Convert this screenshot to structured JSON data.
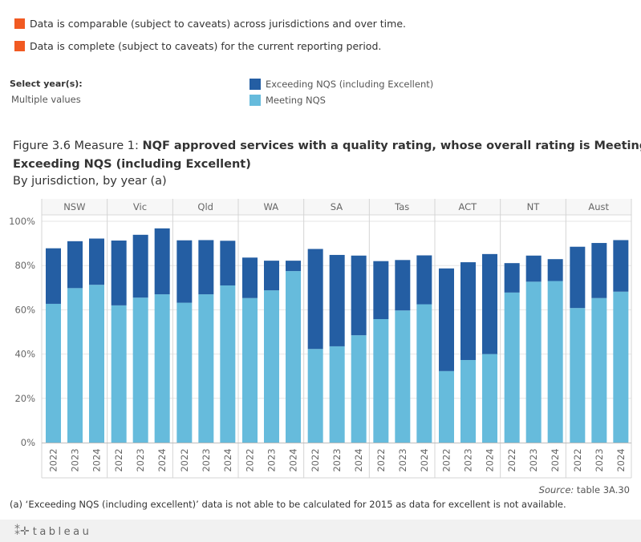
{
  "caveats": [
    {
      "text": "Data is comparable (subject to caveats) across jurisdictions and over time.",
      "color": "#f15a22"
    },
    {
      "text": "Data is complete (subject to caveats) for the current reporting period.",
      "color": "#f15a22"
    }
  ],
  "filter": {
    "label": "Select year(s):",
    "value": "Multiple values"
  },
  "figure": {
    "title_prefix": "Figure 3.6 Measure 1: ",
    "title_bold_1": "NQF approved services with a quality rating, whose overall rating is Meeting or",
    "title_bold_2": "Exceeding NQS (including Excellent)",
    "subtitle": "By jurisdiction, by year (a)"
  },
  "source": {
    "label": "Source:",
    "text": " table 3A.30"
  },
  "footnote": "(a) ‘Exceeding NQS (including excellent)’ data is not able to be calculated for 2015 as data for excellent is not available.",
  "branding": {
    "logo_text": "tableau"
  },
  "chart_data": {
    "type": "bar",
    "stacked": true,
    "panels": [
      "NSW",
      "Vic",
      "Qld",
      "WA",
      "SA",
      "Tas",
      "ACT",
      "NT",
      "Aust"
    ],
    "years": [
      "2022",
      "2023",
      "2024"
    ],
    "y_ticks": [
      "0%",
      "20%",
      "40%",
      "60%",
      "80%",
      "100%"
    ],
    "ylim": [
      0,
      100
    ],
    "grid": true,
    "series": [
      {
        "name": "Meeting NQS",
        "color": "#66bbdc",
        "values": [
          [
            62.7,
            69.8,
            71.3
          ],
          [
            62.0,
            65.5,
            67.0
          ],
          [
            63.2,
            67.0,
            71.0
          ],
          [
            65.3,
            68.8,
            77.5
          ],
          [
            42.3,
            43.5,
            48.5
          ],
          [
            55.8,
            59.7,
            62.5
          ],
          [
            32.3,
            37.3,
            40.0
          ],
          [
            67.8,
            72.7,
            73.0
          ],
          [
            60.8,
            65.3,
            68.2
          ]
        ]
      },
      {
        "name": "Exceeding NQS (including Excellent)",
        "color": "#245ea3",
        "values": [
          [
            25.1,
            21.2,
            20.9
          ],
          [
            29.3,
            28.4,
            29.8
          ],
          [
            28.2,
            24.5,
            20.2
          ],
          [
            18.3,
            13.4,
            4.7
          ],
          [
            45.2,
            41.3,
            36.0
          ],
          [
            26.2,
            22.8,
            22.1
          ],
          [
            46.4,
            44.2,
            45.2
          ],
          [
            13.3,
            11.8,
            9.9
          ],
          [
            27.7,
            24.9,
            23.3
          ]
        ]
      }
    ]
  }
}
